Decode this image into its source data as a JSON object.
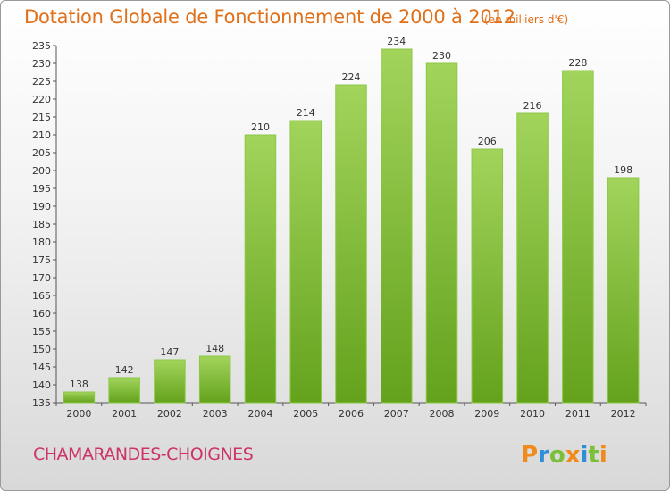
{
  "header": {
    "title": "Dotation Globale de Fonctionnement de 2000 à 2012",
    "unit": "(en milliers d'€)"
  },
  "footer": {
    "commune": "CHAMARANDES-CHOIGNES",
    "logo_text": "Proxiti"
  },
  "colors": {
    "title": "#e0701a",
    "commune": "#cc3366",
    "bar_light": "#a2d45c",
    "bar_dark": "#64a21c",
    "logo_orange": "#f08a1a",
    "logo_blue": "#2f8fd6",
    "logo_green": "#7cc03a"
  },
  "chart_data": {
    "type": "bar",
    "title": "Dotation Globale de Fonctionnement de 2000 à 2012",
    "subtitle": "(en milliers d'€)",
    "xlabel": "",
    "ylabel": "",
    "categories": [
      "2000",
      "2001",
      "2002",
      "2003",
      "2004",
      "2005",
      "2006",
      "2007",
      "2008",
      "2009",
      "2010",
      "2011",
      "2012"
    ],
    "values": [
      138,
      142,
      147,
      148,
      210,
      214,
      224,
      234,
      230,
      206,
      216,
      228,
      198
    ],
    "ylim": [
      135,
      235
    ],
    "yticks": [
      135,
      140,
      145,
      150,
      155,
      160,
      165,
      170,
      175,
      180,
      185,
      190,
      195,
      200,
      205,
      210,
      215,
      220,
      225,
      230,
      235
    ],
    "grid": false,
    "legend": "none",
    "data_labels": true
  }
}
